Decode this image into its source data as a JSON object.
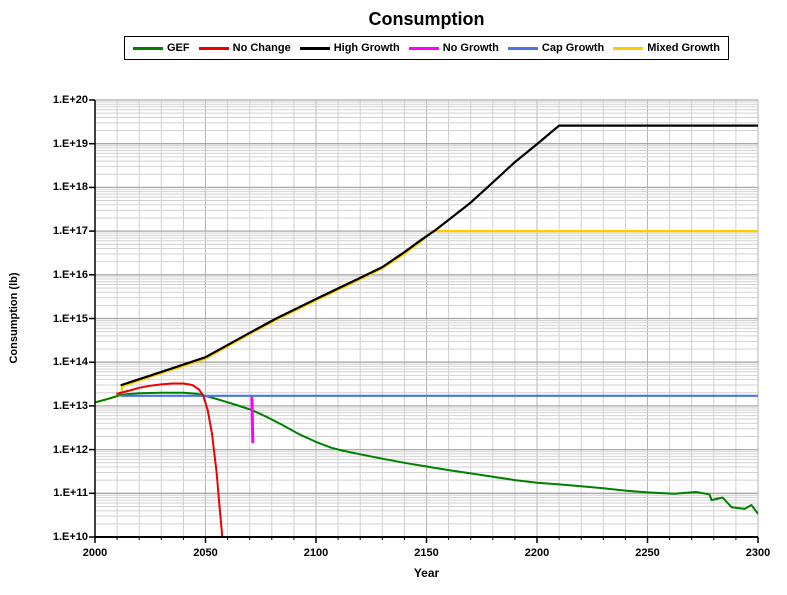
{
  "title": "Consumption",
  "legend": {
    "position": "top",
    "items": [
      {
        "label": "GEF",
        "color": "#008000"
      },
      {
        "label": "No Change",
        "color": "#EE0000"
      },
      {
        "label": "High Growth",
        "color": "#000000"
      },
      {
        "label": "No Growth",
        "color": "#FF00FF"
      },
      {
        "label": "Cap Growth",
        "color": "#4876E8"
      },
      {
        "label": "Mixed Growth",
        "color": "#FFCC00"
      }
    ]
  },
  "axes": {
    "x": {
      "title": "Year",
      "min": 2000,
      "max": 2300,
      "major_step": 50,
      "minor_step": 10,
      "tick_labels": [
        "2000",
        "2050",
        "2100",
        "2150",
        "2200",
        "2250",
        "2300"
      ]
    },
    "y": {
      "title": "Consumption (lb)",
      "scale": "log10",
      "tick_labels": [
        "1.E+10",
        "1.E+11",
        "1.E+12",
        "1.E+13",
        "1.E+14",
        "1.E+15",
        "1.E+16",
        "1.E+17",
        "1.E+18",
        "1.E+19",
        "1.E+20"
      ]
    }
  },
  "colors": {
    "background": "#FFFFFF",
    "axis": "#000000",
    "grid_major_h": "#A9A9A9",
    "grid_minor_h": "#D2D2D2",
    "grid_major_v": "#B5B5B5",
    "grid_minor_v": "#D0D0D0"
  },
  "chart_data": {
    "type": "line",
    "title": "Consumption",
    "xlabel": "Year",
    "ylabel": "Consumption (lb)",
    "x_range": [
      2000,
      2300
    ],
    "y_range": [
      10000000000.0,
      1e+20
    ],
    "y_scale": "log",
    "grid": "major+minor",
    "legend_position": "top",
    "series": [
      {
        "name": "GEF",
        "color": "#008000",
        "width": 2,
        "z": 3,
        "points": [
          [
            2000,
            12000000000000.0
          ],
          [
            2006,
            14500000000000.0
          ],
          [
            2012,
            18000000000000.0
          ],
          [
            2020,
            19500000000000.0
          ],
          [
            2030,
            20000000000000.0
          ],
          [
            2040,
            20000000000000.0
          ],
          [
            2046,
            19000000000000.0
          ],
          [
            2052,
            16000000000000.0
          ],
          [
            2058,
            13000000000000.0
          ],
          [
            2064,
            10500000000000.0
          ],
          [
            2071,
            8000000000000.0
          ],
          [
            2078,
            5500000000000.0
          ],
          [
            2085,
            3600000000000.0
          ],
          [
            2092,
            2300000000000.0
          ],
          [
            2100,
            1500000000000.0
          ],
          [
            2107,
            1100000000000.0
          ],
          [
            2112,
            950000000000.0
          ],
          [
            2120,
            780000000000.0
          ],
          [
            2130,
            620000000000.0
          ],
          [
            2140,
            500000000000.0
          ],
          [
            2150,
            410000000000.0
          ],
          [
            2160,
            340000000000.0
          ],
          [
            2170,
            285000000000.0
          ],
          [
            2180,
            240000000000.0
          ],
          [
            2190,
            200000000000.0
          ],
          [
            2200,
            175000000000.0
          ],
          [
            2210,
            160000000000.0
          ],
          [
            2220,
            145000000000.0
          ],
          [
            2230,
            130000000000.0
          ],
          [
            2240,
            115000000000.0
          ],
          [
            2250,
            105000000000.0
          ],
          [
            2262,
            98000000000.0
          ],
          [
            2272,
            107000000000.0
          ],
          [
            2278,
            95000000000.0
          ],
          [
            2279,
            70000000000.0
          ],
          [
            2284,
            80000000000.0
          ],
          [
            2288,
            48000000000.0
          ],
          [
            2294,
            44000000000.0
          ],
          [
            2297,
            54000000000.0
          ],
          [
            2300,
            34000000000.0
          ]
        ]
      },
      {
        "name": "No Change",
        "color": "#EE0000",
        "width": 2,
        "z": 6,
        "points": [
          [
            2010,
            19000000000000.0
          ],
          [
            2015,
            22000000000000.0
          ],
          [
            2020,
            26000000000000.0
          ],
          [
            2025,
            29000000000000.0
          ],
          [
            2030,
            31000000000000.0
          ],
          [
            2035,
            32500000000000.0
          ],
          [
            2040,
            32500000000000.0
          ],
          [
            2044,
            30000000000000.0
          ],
          [
            2047,
            24000000000000.0
          ],
          [
            2049,
            17000000000000.0
          ],
          [
            2051,
            8000000000000.0
          ],
          [
            2053,
            2200000000000.0
          ],
          [
            2055,
            300000000000.0
          ],
          [
            2056.5,
            40000000000.0
          ],
          [
            2057.8,
            8000000000.0
          ]
        ]
      },
      {
        "name": "High Growth",
        "color": "#000000",
        "width": 2.2,
        "z": 2,
        "points": [
          [
            2012,
            30000000000000.0
          ],
          [
            2030,
            60000000000000.0
          ],
          [
            2050,
            130000000000000.0
          ],
          [
            2070,
            470000000000000.0
          ],
          [
            2082,
            1000000000000000.0
          ],
          [
            2100,
            2800000000000000.0
          ],
          [
            2120,
            8500000000000000.0
          ],
          [
            2130,
            1.5e+16
          ],
          [
            2140,
            3.3e+16
          ],
          [
            2147,
            6e+16
          ],
          [
            2154,
            1.05e+17
          ],
          [
            2160,
            1.8e+17
          ],
          [
            2170,
            4.5e+17
          ],
          [
            2180,
            1.3e+18
          ],
          [
            2190,
            3.8e+18
          ],
          [
            2200,
            9.8e+18
          ],
          [
            2210,
            2.6e+19
          ],
          [
            2300,
            2.6e+19
          ]
        ]
      },
      {
        "name": "No Growth",
        "color": "#FF00FF",
        "width": 3,
        "z": 4,
        "points": [
          [
            2071,
            15500000000000.0
          ],
          [
            2071.4,
            1500000000000.0
          ]
        ]
      },
      {
        "name": "Cap Growth",
        "color": "#4876E8",
        "width": 2.2,
        "z": 5,
        "points": [
          [
            2012,
            17000000000000.0
          ],
          [
            2300,
            17000000000000.0
          ]
        ]
      },
      {
        "name": "Mixed Growth",
        "color": "#FFCC00",
        "width": 2.2,
        "z": 1,
        "points": [
          [
            2000,
            12000000000000.0
          ],
          [
            2006,
            14500000000000.0
          ],
          [
            2011,
            17500000000000.0
          ],
          [
            2012,
            19000000000000.0
          ],
          [
            2012.3,
            28000000000000.0
          ],
          [
            2030,
            56000000000000.0
          ],
          [
            2050,
            120000000000000.0
          ],
          [
            2070,
            440000000000000.0
          ],
          [
            2082,
            930000000000000.0
          ],
          [
            2100,
            2600000000000000.0
          ],
          [
            2120,
            7900000000000000.0
          ],
          [
            2130,
            1.4e+16
          ],
          [
            2140,
            3e+16
          ],
          [
            2147,
            5.5e+16
          ],
          [
            2153,
            1e+17
          ],
          [
            2300,
            1e+17
          ]
        ]
      }
    ]
  }
}
